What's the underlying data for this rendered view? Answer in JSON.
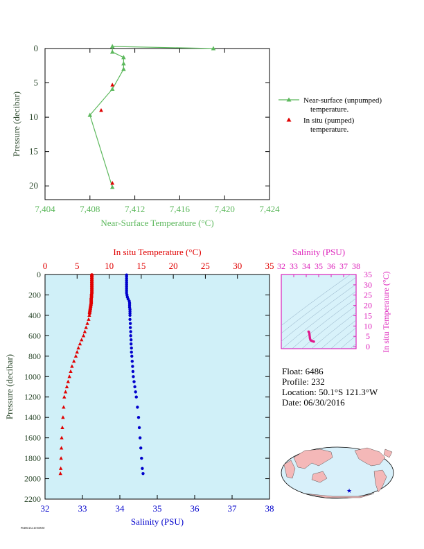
{
  "colors": {
    "green": "#5cb85c",
    "red": "#e00000",
    "blue": "#0000cc",
    "magenta": "#dd22bb",
    "axis_dark": "#2e4a2e",
    "profile_bg": "#d0f0f8",
    "inset_bg": "#d8f2fa",
    "land": "#f4b8b8",
    "ocean": "#d8f0fa"
  },
  "chart_data": [
    {
      "type": "line",
      "name": "near-surface-temperature",
      "xlabel": "Near-Surface Temperature (°C)",
      "ylabel": "Pressure (decibar)",
      "xlim": [
        7.404,
        7.424
      ],
      "ylim": [
        0,
        22
      ],
      "y_inverted": true,
      "xticks": [
        "7,404",
        "7,408",
        "7,412",
        "7,416",
        "7,420",
        "7,424"
      ],
      "xtick_values": [
        7.404,
        7.408,
        7.412,
        7.416,
        7.42,
        7.424
      ],
      "yticks": [
        0,
        5,
        10,
        15,
        20
      ],
      "series": [
        {
          "name": "Near-surface (unpumped) temperature.",
          "marker": "triangle",
          "color": "#5cb85c",
          "points": [
            [
              7.419,
              0.0
            ],
            [
              7.41,
              -0.3
            ],
            [
              7.41,
              0.5
            ],
            [
              7.411,
              1.3
            ],
            [
              7.411,
              2.2
            ],
            [
              7.411,
              3.0
            ],
            [
              7.41,
              5.9
            ],
            [
              7.408,
              9.7
            ],
            [
              7.41,
              20.2
            ]
          ]
        },
        {
          "name": "In situ (pumped) temperature.",
          "marker": "triangle",
          "color": "#e00000",
          "points": [
            [
              7.41,
              5.3
            ],
            [
              7.409,
              9.0
            ],
            [
              7.41,
              19.6
            ]
          ]
        }
      ],
      "legend": [
        {
          "line1": "Near-surface (unpumped)",
          "line2": "temperature."
        },
        {
          "line1": "In situ (pumped)",
          "line2": "temperature."
        }
      ],
      "legend_position": "right"
    },
    {
      "type": "scatter",
      "name": "profile",
      "ylabel": "Pressure (decibar)",
      "ylim": [
        0,
        2200
      ],
      "y_inverted": true,
      "yticks": [
        0,
        200,
        400,
        600,
        800,
        1000,
        1200,
        1400,
        1600,
        1800,
        2000,
        2200
      ],
      "top_axis": {
        "label": "In situ Temperature (°C)",
        "lim": [
          0,
          35
        ],
        "ticks": [
          0,
          5,
          10,
          15,
          20,
          25,
          30,
          35
        ]
      },
      "bottom_axis": {
        "label": "Salinity (PSU)",
        "lim": [
          32,
          38
        ],
        "ticks": [
          32,
          33,
          34,
          35,
          36,
          37,
          38
        ]
      },
      "temperature": {
        "color": "#e00000",
        "pressure": [
          5,
          20,
          40,
          60,
          80,
          100,
          120,
          140,
          160,
          180,
          200,
          220,
          240,
          260,
          280,
          300,
          320,
          340,
          360,
          380,
          400,
          440,
          480,
          520,
          560,
          600,
          640,
          680,
          720,
          760,
          800,
          850,
          900,
          950,
          1000,
          1050,
          1100,
          1150,
          1200,
          1300,
          1400,
          1500,
          1600,
          1700,
          1800,
          1900,
          1950
        ],
        "values": [
          7.3,
          7.3,
          7.3,
          7.3,
          7.3,
          7.3,
          7.3,
          7.3,
          7.3,
          7.3,
          7.25,
          7.25,
          7.2,
          7.2,
          7.2,
          7.15,
          7.1,
          7.05,
          7.0,
          6.95,
          6.9,
          6.8,
          6.6,
          6.4,
          6.2,
          6.0,
          5.7,
          5.45,
          5.2,
          5.0,
          4.8,
          4.5,
          4.2,
          4.0,
          3.8,
          3.6,
          3.4,
          3.2,
          3.0,
          2.9,
          2.8,
          2.7,
          2.6,
          2.55,
          2.5,
          2.45,
          2.4
        ]
      },
      "salinity": {
        "color": "#0000cc",
        "pressure": [
          5,
          20,
          40,
          60,
          80,
          100,
          120,
          140,
          160,
          180,
          200,
          220,
          240,
          260,
          280,
          300,
          320,
          340,
          360,
          380,
          400,
          440,
          480,
          520,
          560,
          600,
          640,
          680,
          720,
          760,
          800,
          850,
          900,
          950,
          1000,
          1050,
          1100,
          1150,
          1200,
          1300,
          1400,
          1500,
          1600,
          1700,
          1800,
          1900,
          1950
        ],
        "values": [
          34.18,
          34.18,
          34.18,
          34.18,
          34.18,
          34.18,
          34.18,
          34.18,
          34.18,
          34.18,
          34.19,
          34.2,
          34.22,
          34.25,
          34.26,
          34.26,
          34.26,
          34.27,
          34.27,
          34.27,
          34.27,
          34.27,
          34.28,
          34.28,
          34.29,
          34.29,
          34.3,
          34.3,
          34.31,
          34.31,
          34.32,
          34.33,
          34.34,
          34.35,
          34.36,
          34.38,
          34.4,
          34.42,
          34.44,
          34.47,
          34.5,
          34.52,
          34.54,
          34.56,
          34.58,
          34.6,
          34.62
        ]
      }
    },
    {
      "type": "scatter",
      "name": "ts-diagram",
      "top_axis": {
        "label": "Salinity (PSU)",
        "lim": [
          32,
          38
        ],
        "ticks": [
          32,
          33,
          34,
          35,
          36,
          37,
          38
        ]
      },
      "right_axis": {
        "label": "In situ Temperature (°C)",
        "lim": [
          -1,
          35
        ],
        "ticks": [
          0,
          5,
          10,
          15,
          20,
          25,
          30,
          35
        ]
      },
      "points": [
        [
          34.18,
          7.3
        ],
        [
          34.2,
          7.25
        ],
        [
          34.22,
          7.0
        ],
        [
          34.25,
          6.5
        ],
        [
          34.26,
          6.0
        ],
        [
          34.27,
          5.5
        ],
        [
          34.28,
          5.0
        ],
        [
          34.29,
          4.5
        ],
        [
          34.3,
          4.0
        ],
        [
          34.32,
          3.6
        ],
        [
          34.34,
          3.2
        ],
        [
          34.38,
          3.0
        ],
        [
          34.42,
          2.8
        ],
        [
          34.47,
          2.7
        ],
        [
          34.52,
          2.6
        ],
        [
          34.56,
          2.5
        ],
        [
          34.6,
          2.45
        ],
        [
          34.62,
          2.4
        ]
      ]
    }
  ],
  "info": {
    "float": "Float:  6486",
    "profile": "Profile:  232",
    "location": "Location:  50.1°S  121.3°W",
    "date": "Date:  06/30/2016"
  },
  "footer": "P6486/232 20160630",
  "map": {
    "marker_icon": "star-icon"
  }
}
